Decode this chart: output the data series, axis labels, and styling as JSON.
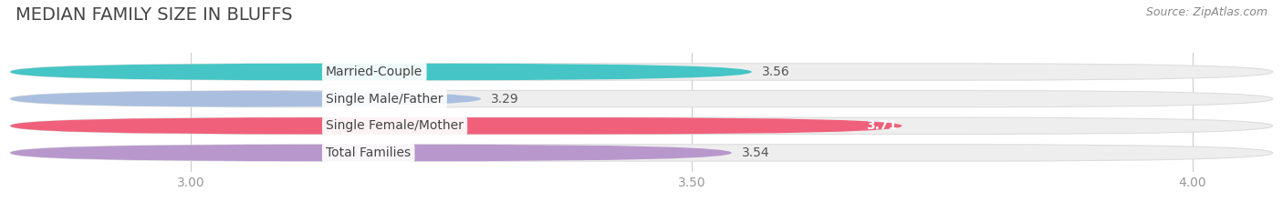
{
  "title": "MEDIAN FAMILY SIZE IN BLUFFS",
  "source": "Source: ZipAtlas.com",
  "categories": [
    "Married-Couple",
    "Single Male/Father",
    "Single Female/Mother",
    "Total Families"
  ],
  "values": [
    3.56,
    3.29,
    3.71,
    3.54
  ],
  "bar_colors": [
    "#45c5c5",
    "#aabfdf",
    "#f0607a",
    "#b898cc"
  ],
  "value_colors": [
    "#555555",
    "#555555",
    "#ffffff",
    "#555555"
  ],
  "value_inside": [
    false,
    false,
    true,
    false
  ],
  "xlim": [
    2.82,
    4.08
  ],
  "xticks": [
    3.0,
    3.5,
    4.0
  ],
  "background_color": "#ffffff",
  "bar_bg_color": "#eeeeee",
  "title_fontsize": 14,
  "source_fontsize": 9,
  "label_fontsize": 10,
  "value_fontsize": 10,
  "tick_fontsize": 10,
  "bar_height": 0.62,
  "bar_gap": 0.38
}
